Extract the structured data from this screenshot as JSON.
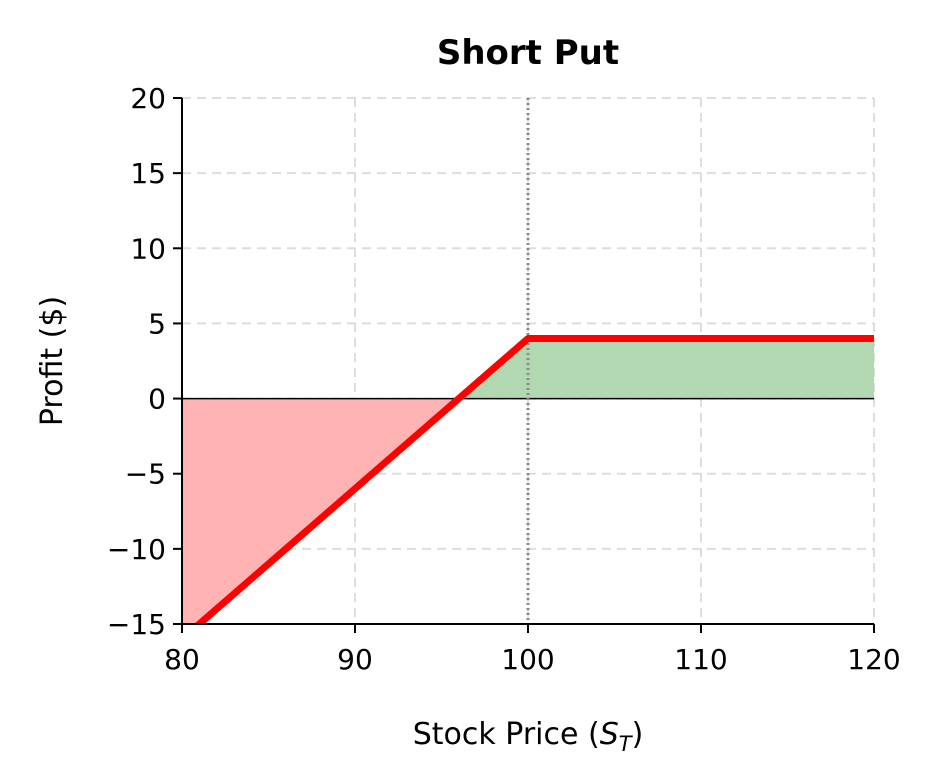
{
  "chart_data": {
    "type": "line",
    "title": "Short Put",
    "xlabel": "Stock Price (",
    "xlabel_sym": "S",
    "xlabel_sub": "T",
    "xlabel_end": ")",
    "ylabel": "Profit ($)",
    "xlim": [
      80,
      120
    ],
    "ylim": [
      -15,
      20
    ],
    "x_ticks": [
      80,
      90,
      100,
      110,
      120
    ],
    "x_tick_labels": [
      "80",
      "90",
      "100",
      "110",
      "120"
    ],
    "y_ticks": [
      -15,
      -10,
      -5,
      0,
      5,
      10,
      15,
      20
    ],
    "y_tick_labels": [
      "−15",
      "−10",
      "−5",
      "0",
      "5",
      "10",
      "15",
      "20"
    ],
    "grid": true,
    "strike": 100,
    "premium": 4,
    "series": [
      {
        "x": [
          80,
          100,
          120
        ],
        "y": [
          -16,
          4,
          4
        ],
        "color": "#ff0000"
      }
    ],
    "zero_line": 0,
    "fill_profit_color": "#b2d8b2",
    "fill_loss_color": "#ffb3b3",
    "strike_line_color": "#888888"
  }
}
